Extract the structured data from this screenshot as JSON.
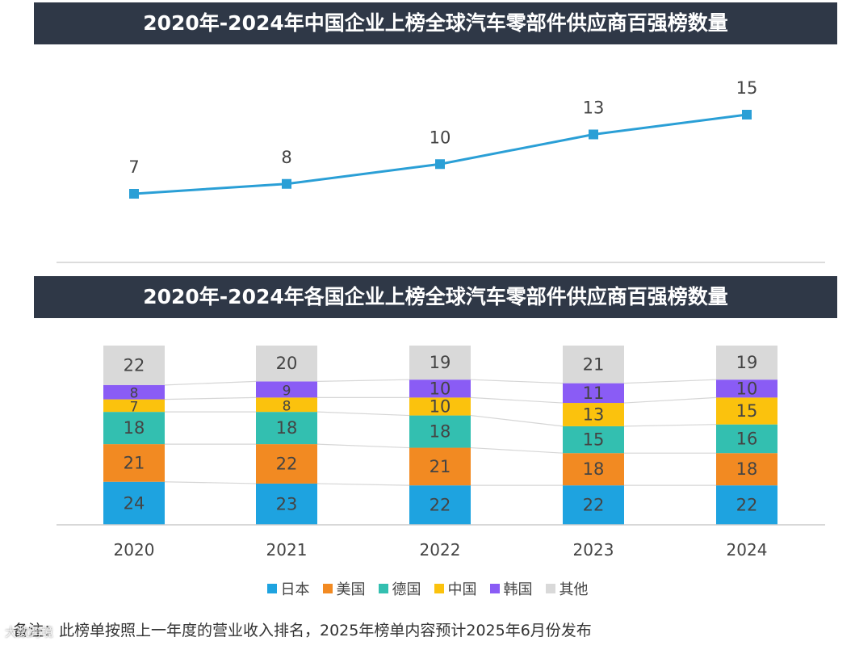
{
  "colors": {
    "banner_bg": "#2f3847",
    "line": "#2a9fd6",
    "label": "#444444"
  },
  "chart_data": [
    {
      "type": "line",
      "title": "2020年-2024年中国企业上榜全球汽车零部件供应商百强榜数量",
      "x": [
        "2020",
        "2021",
        "2022",
        "2023",
        "2024"
      ],
      "values": [
        7,
        8,
        10,
        13,
        15
      ],
      "xlabel": "",
      "ylabel": "",
      "ylim": [
        0,
        16
      ],
      "grid": false
    },
    {
      "type": "bar",
      "stacked": true,
      "title": "2020年-2024年各国企业上榜全球汽车零部件供应商百强榜数量",
      "categories": [
        "2020",
        "2021",
        "2022",
        "2023",
        "2024"
      ],
      "series": [
        {
          "name": "日本",
          "color": "#1ea3e0",
          "values": [
            24,
            23,
            22,
            22,
            22
          ]
        },
        {
          "name": "美国",
          "color": "#f28a22",
          "values": [
            21,
            22,
            21,
            18,
            18
          ]
        },
        {
          "name": "德国",
          "color": "#33bfb0",
          "values": [
            18,
            18,
            18,
            15,
            16
          ]
        },
        {
          "name": "中国",
          "color": "#fbc20d",
          "values": [
            7,
            8,
            10,
            13,
            15
          ]
        },
        {
          "name": "韩国",
          "color": "#8a5cf5",
          "values": [
            8,
            9,
            10,
            11,
            10
          ]
        },
        {
          "name": "其他",
          "color": "#d9d9d9",
          "values": [
            22,
            20,
            19,
            21,
            19
          ]
        }
      ],
      "ylim": [
        0,
        100
      ],
      "legend": "bottom",
      "grid": false
    }
  ],
  "note": "备注：此榜单按照上一年度的营业收入排名，2025年榜单内容预计2025年6月份发布",
  "watermark": "大数跨境"
}
